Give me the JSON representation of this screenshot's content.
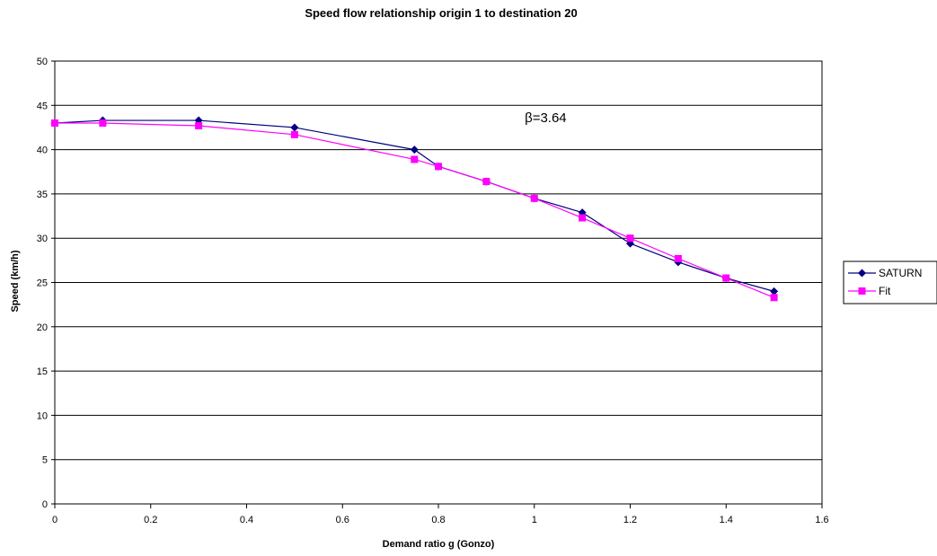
{
  "chart_data": {
    "type": "line",
    "title": "Speed flow relationship origin 1 to destination 20",
    "xlabel": "Demand ratio g (Gonzo)",
    "ylabel": "Speed (km/h)",
    "xlim": [
      0,
      1.6
    ],
    "ylim": [
      0,
      50
    ],
    "x_ticks": [
      "0",
      "0.2",
      "0.4",
      "0.6",
      "0.8",
      "1",
      "1.2",
      "1.4",
      "1.6"
    ],
    "y_ticks": [
      "0",
      "5",
      "10",
      "15",
      "20",
      "25",
      "30",
      "35",
      "40",
      "45",
      "50"
    ],
    "grid": "horizontal",
    "legend_position": "right",
    "annotation": {
      "text": "β=3.64",
      "x": 0.98,
      "y": 43.6
    },
    "series": [
      {
        "name": "SATURN",
        "marker": "diamond",
        "color": "#000080",
        "x": [
          0,
          0.1,
          0.3,
          0.5,
          0.75,
          0.8,
          0.9,
          1.0,
          1.1,
          1.2,
          1.3,
          1.4,
          1.5
        ],
        "y": [
          43.0,
          43.3,
          43.3,
          42.5,
          40.0,
          38.1,
          36.4,
          34.5,
          32.9,
          29.4,
          27.3,
          25.5,
          24.0
        ]
      },
      {
        "name": "Fit",
        "marker": "square",
        "color": "#ff00ff",
        "x": [
          0,
          0.1,
          0.3,
          0.5,
          0.75,
          0.8,
          0.9,
          1.0,
          1.1,
          1.2,
          1.3,
          1.4,
          1.5
        ],
        "y": [
          43.0,
          43.0,
          42.7,
          41.7,
          38.9,
          38.1,
          36.4,
          34.5,
          32.3,
          30.0,
          27.7,
          25.5,
          23.3
        ]
      }
    ]
  }
}
